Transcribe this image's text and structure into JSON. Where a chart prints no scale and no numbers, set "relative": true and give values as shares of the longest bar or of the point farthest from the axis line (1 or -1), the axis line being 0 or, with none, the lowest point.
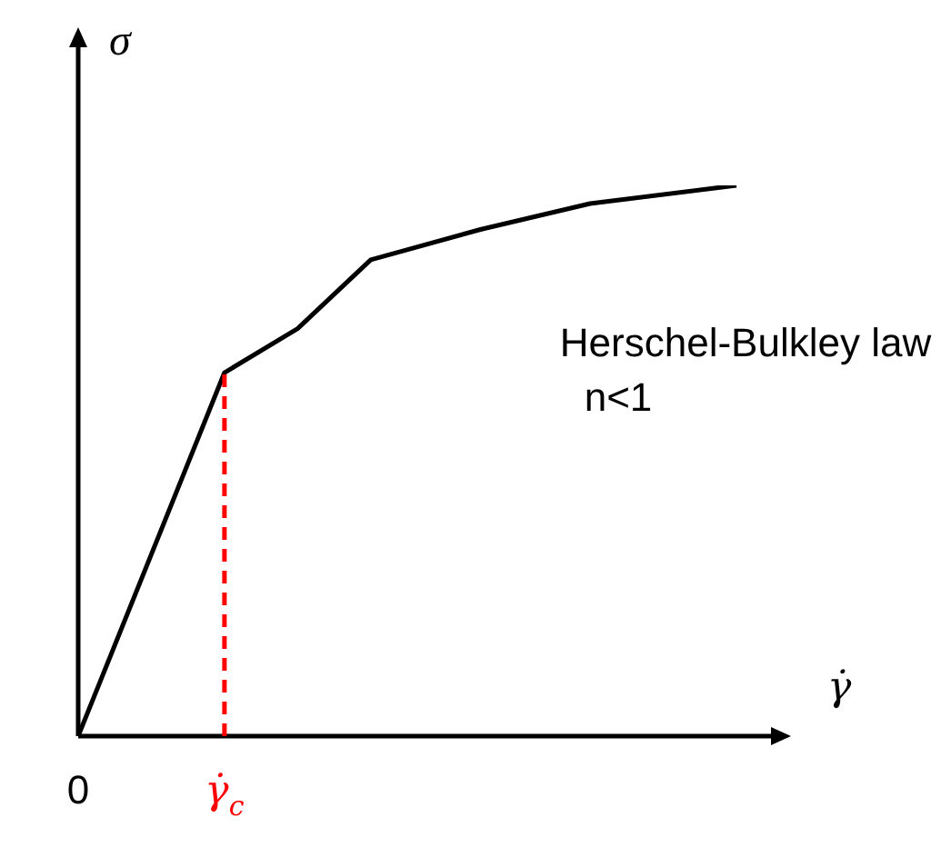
{
  "chart_data": {
    "type": "line",
    "relative": true,
    "xlabel": "γ̇",
    "ylabel": "σ",
    "legend": false,
    "marker": "none",
    "categories": [
      "0",
      null,
      null,
      null,
      "γ̇$_{c}$",
      null,
      null,
      null,
      null,
      null,
      null,
      null,
      null,
      null,
      null,
      null,
      null,
      null,
      null
    ],
    "annotations": [
      "Herschel-Bulkley law",
      "n<1"
    ],
    "ref_lines": [
      {
        "axis": "x",
        "value": "γ̇$_{c}$",
        "color": "#ff0000",
        "line_style": "dashed"
      }
    ],
    "series": [
      {
        "color": "#000000",
        "line_style": "solid",
        "values": [
          0,
          null,
          null,
          null,
          0.66,
          null,
          0.74,
          null,
          0.865,
          null,
          null,
          0.92,
          null,
          null,
          0.967,
          null,
          null,
          null,
          1
        ]
      }
    ]
  }
}
